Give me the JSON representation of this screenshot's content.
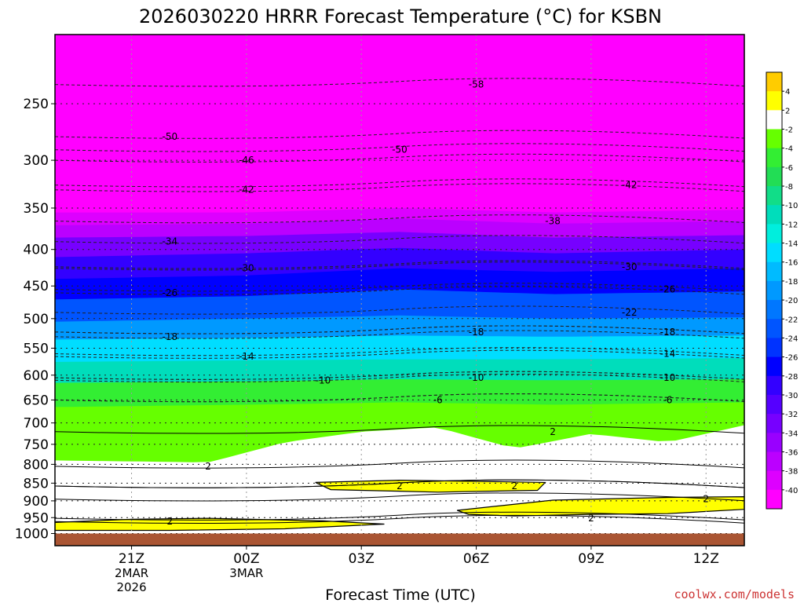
{
  "chart_data": {
    "type": "contour",
    "title": "2026030220 HRRR Forecast Temperature (°C) for KSBN",
    "xlabel": "Forecast Time (UTC)",
    "ylabel": "",
    "credit": "coolwx.com/models",
    "time_range": [
      -1,
      17
    ],
    "pressure_range": [
      1040,
      200
    ],
    "x_ticks": [
      {
        "time": 1,
        "label": "21Z",
        "sub": [
          "2MAR",
          "2026"
        ]
      },
      {
        "time": 4,
        "label": "00Z",
        "sub": [
          "3MAR"
        ]
      },
      {
        "time": 7,
        "label": "03Z",
        "sub": []
      },
      {
        "time": 10,
        "label": "06Z",
        "sub": []
      },
      {
        "time": 13,
        "label": "09Z",
        "sub": []
      },
      {
        "time": 16,
        "label": "12Z",
        "sub": []
      }
    ],
    "y_ticks": [
      250,
      300,
      350,
      400,
      450,
      500,
      550,
      600,
      650,
      700,
      750,
      800,
      850,
      900,
      950,
      1000
    ],
    "colorbar": {
      "bounds": [
        6,
        4,
        2,
        -2,
        -4,
        -6,
        -8,
        -10,
        -12,
        -14,
        -16,
        -18,
        -20,
        -22,
        -24,
        -26,
        -28,
        -30,
        -32,
        -34,
        -36,
        -38,
        -40,
        -42
      ],
      "colors": [
        "#ffcc00",
        "#ffff00",
        "#ffffff",
        "#66ff00",
        "#33ee33",
        "#22dd55",
        "#11dd88",
        "#00ddbb",
        "#00eedd",
        "#00ddff",
        "#00bbff",
        "#0099ff",
        "#0077ff",
        "#0055ff",
        "#0033ff",
        "#0000ff",
        "#3300ff",
        "#5500ff",
        "#7700ff",
        "#9900ff",
        "#bb00ff",
        "#dd00ff",
        "#ff00ff"
      ],
      "labels": [
        4,
        2,
        -2,
        -4,
        -6,
        -8,
        -10,
        -12,
        -14,
        -16,
        -18,
        -20,
        -22,
        -24,
        -26,
        -28,
        -30,
        -32,
        -34,
        -36,
        -38,
        -40
      ]
    },
    "bands": [
      {
        "range": "<= -42",
        "color": "#ff00ff",
        "pressure_profile": [
          [
            -1,
            355
          ],
          [
            4,
            355
          ],
          [
            8,
            350
          ],
          [
            12,
            355
          ],
          [
            17,
            352
          ]
        ]
      },
      {
        "range": "-42..-38",
        "color": "#dd00ff",
        "pressure_profile": [
          [
            -1,
            370
          ],
          [
            4,
            368
          ],
          [
            8,
            362
          ],
          [
            12,
            368
          ],
          [
            17,
            365
          ]
        ]
      },
      {
        "range": "-38..-34",
        "color": "#bb00ff",
        "pressure_profile": [
          [
            -1,
            385
          ],
          [
            4,
            383
          ],
          [
            8,
            378
          ],
          [
            12,
            385
          ],
          [
            17,
            382
          ]
        ]
      },
      {
        "range": "-34..-30",
        "color": "#7700ff",
        "pressure_profile": [
          [
            -1,
            410
          ],
          [
            4,
            405
          ],
          [
            8,
            398
          ],
          [
            12,
            405
          ],
          [
            17,
            400
          ]
        ]
      },
      {
        "range": "-30..-26",
        "color": "#3300ff",
        "pressure_profile": [
          [
            -1,
            440
          ],
          [
            4,
            435
          ],
          [
            8,
            425
          ],
          [
            12,
            430
          ],
          [
            17,
            425
          ]
        ]
      },
      {
        "range": "-26..-22",
        "color": "#0000ff",
        "pressure_profile": [
          [
            -1,
            470
          ],
          [
            4,
            465
          ],
          [
            8,
            455
          ],
          [
            12,
            462
          ],
          [
            17,
            458
          ]
        ]
      },
      {
        "range": "-22..-18",
        "color": "#0055ff",
        "pressure_profile": [
          [
            -1,
            505
          ],
          [
            4,
            500
          ],
          [
            8,
            495
          ],
          [
            12,
            500
          ],
          [
            17,
            498
          ]
        ]
      },
      {
        "range": "-18..-14",
        "color": "#0099ff",
        "pressure_profile": [
          [
            -1,
            535
          ],
          [
            4,
            532
          ],
          [
            8,
            528
          ],
          [
            12,
            530
          ],
          [
            17,
            528
          ]
        ]
      },
      {
        "range": "-14..-10",
        "color": "#00ddff",
        "pressure_profile": [
          [
            -1,
            575
          ],
          [
            4,
            572
          ],
          [
            8,
            570
          ],
          [
            12,
            570
          ],
          [
            17,
            568
          ]
        ]
      },
      {
        "range": "-10..-6",
        "color": "#00ddbb",
        "pressure_profile": [
          [
            -1,
            615
          ],
          [
            4,
            612
          ],
          [
            8,
            608
          ],
          [
            12,
            610
          ],
          [
            17,
            608
          ]
        ]
      },
      {
        "range": "-6..-2",
        "color": "#33ee33",
        "pressure_profile": [
          [
            -1,
            665
          ],
          [
            4,
            660
          ],
          [
            8,
            655
          ],
          [
            12,
            660
          ],
          [
            17,
            655
          ]
        ]
      },
      {
        "range": "-2..2",
        "color": "#66ff00",
        "pressure_profile": [
          [
            -1,
            790
          ],
          [
            3,
            795
          ],
          [
            5,
            745
          ],
          [
            7,
            720
          ],
          [
            9,
            710
          ],
          [
            11,
            760
          ],
          [
            13,
            725
          ],
          [
            15,
            745
          ],
          [
            17,
            705
          ]
        ]
      },
      {
        "range": "2..4",
        "color": "#ffffff",
        "pressure_profile": [
          [
            -1,
            1000
          ],
          [
            17,
            1000
          ]
        ]
      }
    ],
    "contours": [
      {
        "value": -58,
        "label_at": [
          10,
          235
        ]
      },
      {
        "value": -50,
        "label_at": [
          2,
          278
        ]
      },
      {
        "value": -50,
        "label_at": [
          8,
          290
        ]
      },
      {
        "value": -46,
        "label_at": [
          4,
          300
        ]
      },
      {
        "value": -42,
        "label_at": [
          4,
          330
        ]
      },
      {
        "value": -42,
        "label_at": [
          14,
          325
        ]
      },
      {
        "value": -38,
        "label_at": [
          12,
          365
        ]
      },
      {
        "value": -34,
        "label_at": [
          2,
          390
        ]
      },
      {
        "value": -30,
        "label_at": [
          4,
          425
        ]
      },
      {
        "value": -30,
        "label_at": [
          14,
          423
        ]
      },
      {
        "value": -26,
        "label_at": [
          2,
          460
        ]
      },
      {
        "value": -26,
        "label_at": [
          15,
          455
        ]
      },
      {
        "value": -22,
        "label_at": [
          14,
          490
        ]
      },
      {
        "value": -18,
        "label_at": [
          2,
          530
        ]
      },
      {
        "value": -18,
        "label_at": [
          10,
          522
        ]
      },
      {
        "value": -18,
        "label_at": [
          15,
          522
        ]
      },
      {
        "value": -14,
        "label_at": [
          4,
          565
        ]
      },
      {
        "value": -14,
        "label_at": [
          15,
          560
        ]
      },
      {
        "value": -10,
        "label_at": [
          6,
          610
        ]
      },
      {
        "value": -10,
        "label_at": [
          10,
          605
        ]
      },
      {
        "value": -10,
        "label_at": [
          15,
          605
        ]
      },
      {
        "value": -6,
        "label_at": [
          9,
          650
        ]
      },
      {
        "value": -6,
        "label_at": [
          15,
          650
        ]
      },
      {
        "value": 2,
        "label_at": [
          3,
          805
        ]
      },
      {
        "value": 2,
        "label_at": [
          12,
          720
        ]
      },
      {
        "value": 2,
        "label_at": [
          8,
          858
        ]
      },
      {
        "value": 2,
        "label_at": [
          11,
          858
        ]
      },
      {
        "value": 2,
        "label_at": [
          16,
          895
        ]
      },
      {
        "value": 2,
        "label_at": [
          2,
          962
        ]
      },
      {
        "value": 2,
        "label_at": [
          13,
          952
        ]
      }
    ],
    "warm_regions": [
      {
        "name": "warm-pocket-850",
        "points": [
          [
            5.8,
            848
          ],
          [
            8,
            842
          ],
          [
            10,
            845
          ],
          [
            11.8,
            848
          ],
          [
            11.6,
            870
          ],
          [
            9,
            875
          ],
          [
            6.2,
            868
          ]
        ]
      },
      {
        "name": "warm-pocket-900",
        "points": [
          [
            9.5,
            928
          ],
          [
            12,
            898
          ],
          [
            15,
            890
          ],
          [
            17,
            888
          ],
          [
            17,
            925
          ],
          [
            15,
            938
          ],
          [
            13,
            940
          ],
          [
            11,
            945
          ],
          [
            9.8,
            940
          ]
        ]
      },
      {
        "name": "warm-pocket-950",
        "points": [
          [
            -1,
            965
          ],
          [
            1,
            955
          ],
          [
            3,
            952
          ],
          [
            6,
            960
          ],
          [
            7.6,
            970
          ],
          [
            5,
            985
          ],
          [
            2,
            990
          ],
          [
            -1,
            990
          ]
        ]
      }
    ],
    "ground": {
      "label": "surface",
      "color": "#aa5533",
      "pressure_top": 1000
    }
  }
}
